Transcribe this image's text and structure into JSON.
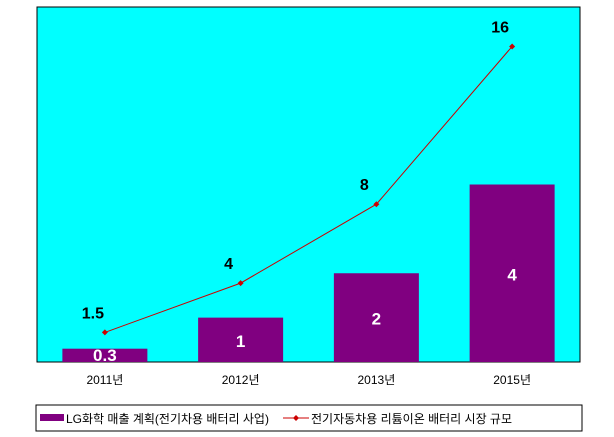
{
  "chart_data": {
    "type": "bar+line",
    "categories": [
      "2011년",
      "2012년",
      "2013년",
      "2015년"
    ],
    "series": [
      {
        "name": "LG화학 매출 계획(전기차용 배터리 사업)",
        "type": "bar",
        "axis": "primary",
        "values": [
          0.3,
          1,
          2,
          4
        ],
        "labels": [
          "0.3",
          "1",
          "2",
          "4"
        ],
        "color": "#800080"
      },
      {
        "name": "전기자동차용 리튬이온 배터리 시장 규모",
        "type": "line",
        "axis": "secondary",
        "values": [
          1.5,
          4,
          8,
          16
        ],
        "labels": [
          "1.5",
          "4",
          "8",
          "16"
        ],
        "color": "#cc0000"
      }
    ],
    "primary_ylim": [
      0,
      8
    ],
    "secondary_ylim": [
      0,
      18
    ],
    "plot_background": "#00ffff",
    "grid": false,
    "legend": "bottom"
  }
}
